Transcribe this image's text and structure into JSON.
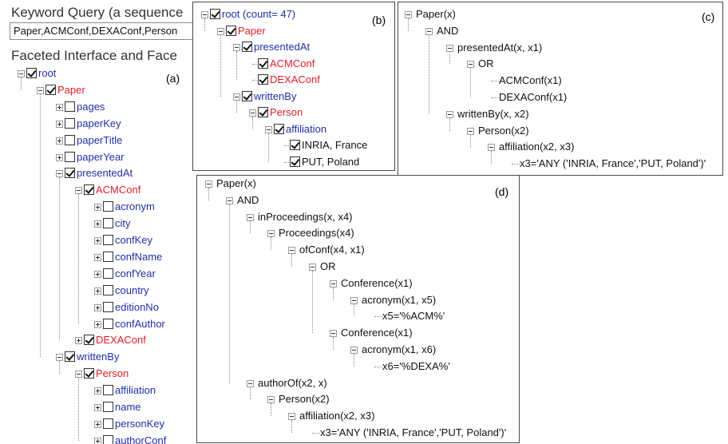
{
  "panel_a": {
    "keyword_query_label": "Keyword Query (a sequence",
    "keyword_query_value": "Paper,ACMConf,DEXAConf,Person",
    "faceted_label": "Faceted Interface and Face",
    "label": "(a)",
    "tree": [
      {
        "id": "a-root",
        "label": "root",
        "expander": "minus",
        "checked": true,
        "color": "blue"
      },
      {
        "id": "a-paper",
        "label": "Paper",
        "expander": "minus",
        "checked": true,
        "color": "red"
      },
      {
        "id": "a-pages",
        "label": "pages",
        "expander": "plus",
        "checked": false,
        "color": "blue"
      },
      {
        "id": "a-paperkey",
        "label": "paperKey",
        "expander": "plus",
        "checked": false,
        "color": "blue"
      },
      {
        "id": "a-papertitle",
        "label": "paperTitle",
        "expander": "plus",
        "checked": false,
        "color": "blue"
      },
      {
        "id": "a-paperyear",
        "label": "paperYear",
        "expander": "plus",
        "checked": false,
        "color": "blue"
      },
      {
        "id": "a-presentedat",
        "label": "presentedAt",
        "expander": "minus",
        "checked": true,
        "color": "blue"
      },
      {
        "id": "a-acmconf",
        "label": "ACMConf",
        "expander": "minus",
        "checked": true,
        "color": "red"
      },
      {
        "id": "a-acronym",
        "label": "acronym",
        "expander": "plus",
        "checked": false,
        "color": "blue"
      },
      {
        "id": "a-city",
        "label": "city",
        "expander": "plus",
        "checked": false,
        "color": "blue"
      },
      {
        "id": "a-confkey",
        "label": "confKey",
        "expander": "plus",
        "checked": false,
        "color": "blue"
      },
      {
        "id": "a-confname",
        "label": "confName",
        "expander": "plus",
        "checked": false,
        "color": "blue"
      },
      {
        "id": "a-confyear",
        "label": "confYear",
        "expander": "plus",
        "checked": false,
        "color": "blue"
      },
      {
        "id": "a-country",
        "label": "country",
        "expander": "plus",
        "checked": false,
        "color": "blue"
      },
      {
        "id": "a-editionno",
        "label": "editionNo",
        "expander": "plus",
        "checked": false,
        "color": "blue"
      },
      {
        "id": "a-confauthor",
        "label": "confAuthor",
        "expander": "plus",
        "checked": false,
        "color": "blue"
      },
      {
        "id": "a-dexaconf",
        "label": "DEXAConf",
        "expander": "plus",
        "checked": true,
        "color": "red"
      },
      {
        "id": "a-writtenby",
        "label": "writtenBy",
        "expander": "minus",
        "checked": true,
        "color": "blue"
      },
      {
        "id": "a-person",
        "label": "Person",
        "expander": "minus",
        "checked": true,
        "color": "red"
      },
      {
        "id": "a-affiliation",
        "label": "affiliation",
        "expander": "plus",
        "checked": false,
        "color": "blue"
      },
      {
        "id": "a-name",
        "label": "name",
        "expander": "plus",
        "checked": false,
        "color": "blue"
      },
      {
        "id": "a-personkey",
        "label": "personKey",
        "expander": "plus",
        "checked": false,
        "color": "blue"
      },
      {
        "id": "a-authorconf",
        "label": "authorConf",
        "expander": "plus",
        "checked": false,
        "color": "blue"
      }
    ]
  },
  "panel_b": {
    "label": "(b)",
    "tree": [
      {
        "id": "b-root",
        "label": "root (count= 47)",
        "expander": "minus",
        "checked": true,
        "color": "blue"
      },
      {
        "id": "b-paper",
        "label": "Paper",
        "expander": "minus",
        "checked": true,
        "color": "red"
      },
      {
        "id": "b-presentedat",
        "label": "presentedAt",
        "expander": "minus",
        "checked": true,
        "color": "blue"
      },
      {
        "id": "b-acmconf",
        "label": "ACMConf",
        "expander": "",
        "checked": true,
        "color": "red"
      },
      {
        "id": "b-dexaconf",
        "label": "DEXAConf",
        "expander": "",
        "checked": true,
        "color": "red"
      },
      {
        "id": "b-writtenby",
        "label": "writtenBy",
        "expander": "minus",
        "checked": true,
        "color": "blue"
      },
      {
        "id": "b-person",
        "label": "Person",
        "expander": "minus",
        "checked": true,
        "color": "red"
      },
      {
        "id": "b-affiliation",
        "label": "affiliation",
        "expander": "minus",
        "checked": true,
        "color": "blue"
      },
      {
        "id": "b-inria",
        "label": "INRIA, France",
        "expander": "",
        "checked": true,
        "color": "dark"
      },
      {
        "id": "b-put",
        "label": "PUT, Poland",
        "expander": "",
        "checked": true,
        "color": "dark"
      }
    ]
  },
  "panel_c": {
    "label": "(c)",
    "tree": [
      {
        "id": "c-paper",
        "label": "Paper(x)",
        "expander": "minus"
      },
      {
        "id": "c-and",
        "label": "AND",
        "expander": "minus"
      },
      {
        "id": "c-presentedat",
        "label": "presentedAt(x, x1)",
        "expander": "minus"
      },
      {
        "id": "c-or",
        "label": "OR",
        "expander": "minus"
      },
      {
        "id": "c-acmconf",
        "label": "ACMConf(x1)",
        "expander": ""
      },
      {
        "id": "c-dexaconf",
        "label": "DEXAConf(x1)",
        "expander": ""
      },
      {
        "id": "c-writtenby",
        "label": "writtenBy(x, x2)",
        "expander": "minus"
      },
      {
        "id": "c-person",
        "label": "Person(x2)",
        "expander": "minus"
      },
      {
        "id": "c-affiliation",
        "label": "affiliation(x2, x3)",
        "expander": "minus"
      },
      {
        "id": "c-x3",
        "label": "x3='ANY ('INRIA, France','PUT, Poland')'",
        "expander": ""
      }
    ]
  },
  "panel_d": {
    "label": "(d)",
    "tree": [
      {
        "id": "d-paper",
        "label": "Paper(x)",
        "expander": "minus"
      },
      {
        "id": "d-and",
        "label": "AND",
        "expander": "minus"
      },
      {
        "id": "d-inproceedings",
        "label": "inProceedings(x, x4)",
        "expander": "minus"
      },
      {
        "id": "d-proceedings",
        "label": "Proceedings(x4)",
        "expander": "minus"
      },
      {
        "id": "d-ofconf",
        "label": "ofConf(x4, x1)",
        "expander": "minus"
      },
      {
        "id": "d-or",
        "label": "OR",
        "expander": "minus"
      },
      {
        "id": "d-conference1",
        "label": "Conference(x1)",
        "expander": "minus"
      },
      {
        "id": "d-acronym1",
        "label": "acronym(x1, x5)",
        "expander": "minus"
      },
      {
        "id": "d-x5",
        "label": "x5='%ACM%'",
        "expander": ""
      },
      {
        "id": "d-conference2",
        "label": "Conference(x1)",
        "expander": "minus"
      },
      {
        "id": "d-acronym2",
        "label": "acronym(x1, x6)",
        "expander": "minus"
      },
      {
        "id": "d-x6",
        "label": "x6='%DEXA%'",
        "expander": ""
      },
      {
        "id": "d-authorof",
        "label": "authorOf(x2, x)",
        "expander": "minus"
      },
      {
        "id": "d-person",
        "label": "Person(x2)",
        "expander": "minus"
      },
      {
        "id": "d-affiliation",
        "label": "affiliation(x2, x3)",
        "expander": "minus"
      },
      {
        "id": "d-x3",
        "label": "x3='ANY ('INRIA, France','PUT, Poland')'",
        "expander": ""
      }
    ]
  }
}
